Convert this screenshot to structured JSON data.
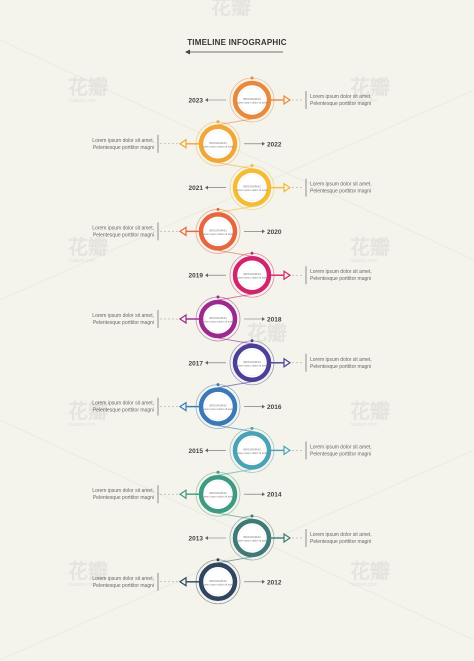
{
  "title": "TIMELINE INFOGRAPHIC",
  "watermark": {
    "brand": "花瓣",
    "url": "huaban.com"
  },
  "inner_label": "INFOGRAPHIC",
  "inner_sub": "Lorem ipsum dolor sit amet",
  "steps": [
    {
      "year": "2023",
      "side": "right",
      "color": "#e8893c",
      "desc1": "Lorem ipsum dolor sit amet,",
      "desc2": "Pelentesque porttitor magni"
    },
    {
      "year": "2022",
      "side": "left",
      "color": "#f0a73a",
      "desc1": "Lorem ipsum dolor sit amet,",
      "desc2": "Pelentesque porttitor magni"
    },
    {
      "year": "2021",
      "side": "right",
      "color": "#f2bd35",
      "desc1": "Lorem ipsum dolor sit amet,",
      "desc2": "Pelentesque porttitor magni"
    },
    {
      "year": "2020",
      "side": "left",
      "color": "#e5673f",
      "desc1": "Lorem ipsum dolor sit amet,",
      "desc2": "Pelentesque porttitor magni"
    },
    {
      "year": "2019",
      "side": "right",
      "color": "#d1246f",
      "desc1": "Lorem ipsum dolor sit amet,",
      "desc2": "Pelentesque porttitor magni"
    },
    {
      "year": "2018",
      "side": "left",
      "color": "#9a2a8e",
      "desc1": "Lorem ipsum dolor sit amet,",
      "desc2": "Pelentesque porttitor magni"
    },
    {
      "year": "2017",
      "side": "right",
      "color": "#4b3f9a",
      "desc1": "Lorem ipsum dolor sit amet,",
      "desc2": "Pelentesque porttitor magni"
    },
    {
      "year": "2016",
      "side": "left",
      "color": "#3a79b8",
      "desc1": "Lorem ipsum dolor sit amet,",
      "desc2": "Pelentesque porttitor magni"
    },
    {
      "year": "2015",
      "side": "right",
      "color": "#4aa3b5",
      "desc1": "Lorem ipsum dolor sit amet,",
      "desc2": "Pelentesque porttitor magni"
    },
    {
      "year": "2014",
      "side": "left",
      "color": "#3e9b82",
      "desc1": "Lorem ipsum dolor sit amet,",
      "desc2": "Pelentesque porttitor magni"
    },
    {
      "year": "2013",
      "side": "right",
      "color": "#3f7a78",
      "desc1": "Lorem ipsum dolor sit amet,",
      "desc2": "Pelentesque porttitor magni"
    },
    {
      "year": "2012",
      "side": "left",
      "color": "#2f4560",
      "desc1": "Lorem ipsum dolor sit amet,",
      "desc2": "Pelentesque porttitor magni"
    }
  ]
}
